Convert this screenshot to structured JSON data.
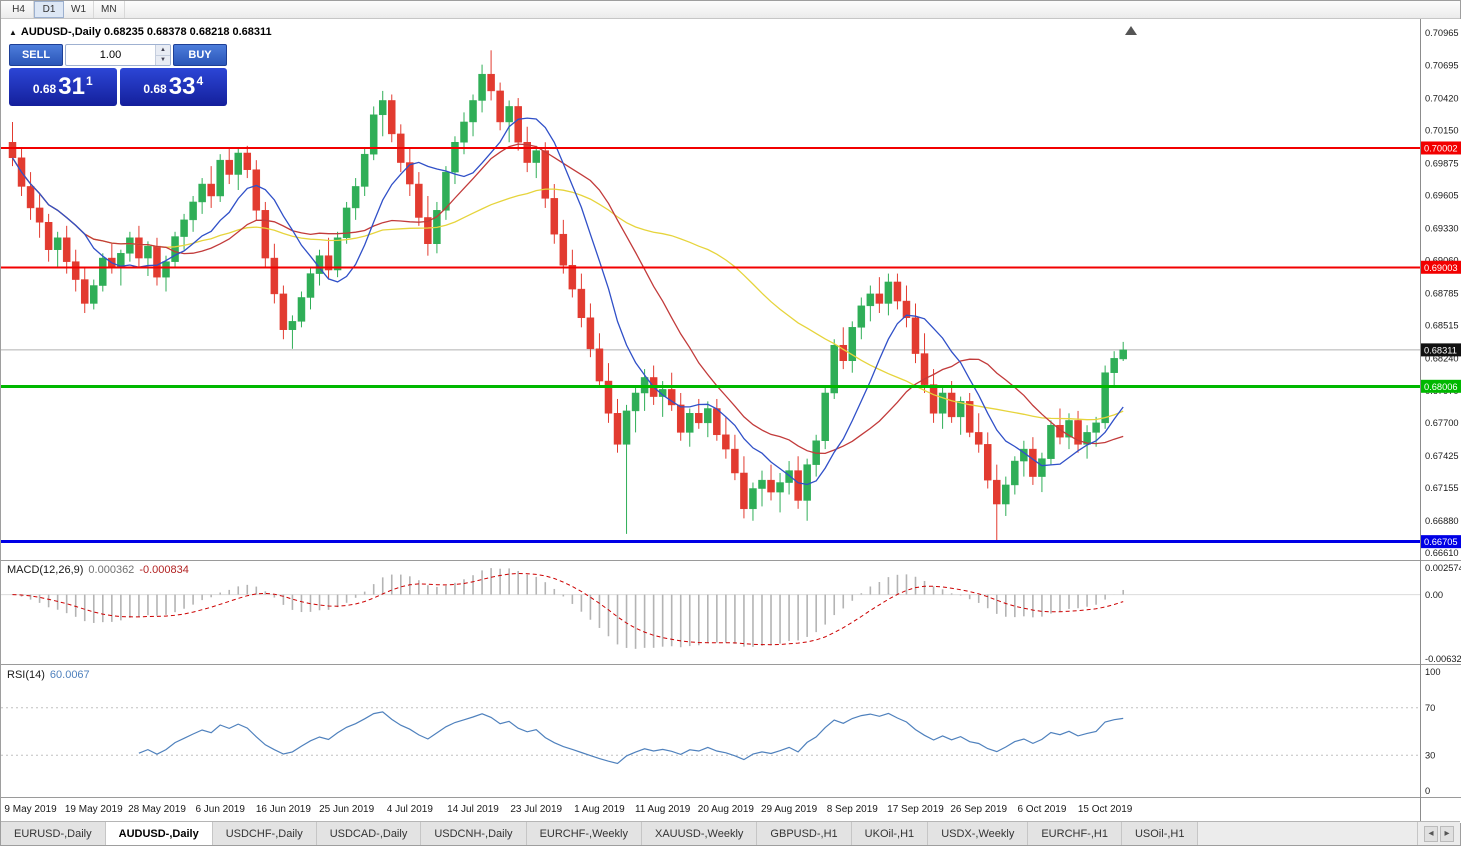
{
  "toolbar": {
    "timeframes": [
      "H4",
      "D1",
      "W1",
      "MN"
    ],
    "active": "D1"
  },
  "chart": {
    "title_line": "AUDUSD-,Daily  0.68235 0.68378 0.68218 0.68311",
    "symbol": "AUDUSD-",
    "period": "Daily"
  },
  "trade_panel": {
    "sell_label": "SELL",
    "buy_label": "BUY",
    "volume": "1.00",
    "sell_price": {
      "prefix": "0.68",
      "big": "31",
      "sup": "1"
    },
    "buy_price": {
      "prefix": "0.68",
      "big": "33",
      "sup": "4"
    }
  },
  "macd": {
    "name": "MACD(12,26,9)",
    "value": "0.000362",
    "signal": "-0.000834",
    "axis_max": "0.002574",
    "axis_zero": "0.00",
    "axis_min": "-0.006326",
    "max": 0.002574,
    "min": -0.006326,
    "fast": 12,
    "slow": 26,
    "signal_period": 9,
    "histogram_color": "#b4b4b4",
    "signal_color": "#cc0000"
  },
  "rsi": {
    "name": "RSI(14)",
    "value": "60.0067",
    "period": 14,
    "axis": [
      "100",
      "70",
      "30",
      "0"
    ],
    "levels": [
      70,
      30
    ],
    "line_color": "#4f81bd"
  },
  "tabs": {
    "items": [
      "EURUSD-,Daily",
      "AUDUSD-,Daily",
      "USDCHF-,Daily",
      "USDCAD-,Daily",
      "USDCNH-,Daily",
      "EURCHF-,Weekly",
      "XAUUSD-,Weekly",
      "GBPUSD-,H1",
      "UKOil-,H1",
      "USDX-,Weekly",
      "EURCHF-,H1",
      "USOil-,H1"
    ],
    "active_index": 1
  },
  "chart_data": {
    "type": "candlestick",
    "symbol": "AUDUSD-",
    "timeframe": "Daily",
    "ohlc": {
      "open": "0.68235",
      "high": "0.68378",
      "low": "0.68218",
      "close": "0.68311"
    },
    "up_color": "#2fae57",
    "down_color": "#e23b30",
    "bid_line": {
      "price": 0.68311,
      "color": "#b0b0b0"
    },
    "current_price": 0.68311,
    "y_axis": {
      "labels": [
        "0.70965",
        "0.70695",
        "0.70420",
        "0.70150",
        "0.69875",
        "0.69605",
        "0.69330",
        "0.69060",
        "0.68785",
        "0.68515",
        "0.68240",
        "0.67970",
        "0.67700",
        "0.67425",
        "0.67155",
        "0.66880",
        "0.66610"
      ],
      "min": 0.6661,
      "max": 0.70965
    },
    "hlines": [
      {
        "price": 0.70002,
        "color": "#f20000",
        "width": 2
      },
      {
        "price": 0.69003,
        "color": "#f20000",
        "width": 2
      },
      {
        "price": 0.68006,
        "color": "#00b800",
        "width": 3
      },
      {
        "price": 0.66705,
        "color": "#0000e6",
        "width": 3
      }
    ],
    "badges": [
      {
        "value": "0.70002",
        "price": 0.70002,
        "color": "#f20000"
      },
      {
        "value": "0.69003",
        "price": 0.69003,
        "color": "#f20000"
      },
      {
        "value": "0.68006",
        "price": 0.68006,
        "color": "#00b800"
      },
      {
        "value": "0.68311",
        "price": 0.68311,
        "color": "#111111"
      },
      {
        "value": "0.66705",
        "price": 0.66705,
        "color": "#0000e6"
      }
    ],
    "moving_averages": [
      {
        "period": 42,
        "color": "#e6d43c"
      },
      {
        "period": 18,
        "color": "#c23b3b"
      },
      {
        "period": 9,
        "color": "#3050c8"
      }
    ],
    "x_labels": [
      "9 May 2019",
      "19 May 2019",
      "28 May 2019",
      "6 Jun 2019",
      "16 Jun 2019",
      "25 Jun 2019",
      "4 Jul 2019",
      "14 Jul 2019",
      "23 Jul 2019",
      "1 Aug 2019",
      "11 Aug 2019",
      "20 Aug 2019",
      "29 Aug 2019",
      "8 Sep 2019",
      "17 Sep 2019",
      "26 Sep 2019",
      "6 Oct 2019",
      "15 Oct 2019"
    ],
    "x_label_first_index": 2,
    "x_label_step": 7,
    "candles": [
      [
        0.7005,
        0.7022,
        0.6985,
        0.6992
      ],
      [
        0.6992,
        0.7,
        0.696,
        0.6968
      ],
      [
        0.6968,
        0.698,
        0.694,
        0.695
      ],
      [
        0.695,
        0.6962,
        0.6925,
        0.6938
      ],
      [
        0.6938,
        0.6945,
        0.6905,
        0.6915
      ],
      [
        0.6915,
        0.693,
        0.69,
        0.6925
      ],
      [
        0.6925,
        0.6935,
        0.6895,
        0.6905
      ],
      [
        0.6905,
        0.6915,
        0.688,
        0.689
      ],
      [
        0.689,
        0.69,
        0.6862,
        0.687
      ],
      [
        0.687,
        0.689,
        0.6865,
        0.6885
      ],
      [
        0.6885,
        0.6912,
        0.688,
        0.6908
      ],
      [
        0.6908,
        0.692,
        0.6895,
        0.69
      ],
      [
        0.69,
        0.6915,
        0.6885,
        0.6912
      ],
      [
        0.6912,
        0.693,
        0.6905,
        0.6925
      ],
      [
        0.6925,
        0.6935,
        0.69,
        0.6908
      ],
      [
        0.6908,
        0.6922,
        0.6893,
        0.6918
      ],
      [
        0.6918,
        0.6925,
        0.6885,
        0.6892
      ],
      [
        0.6892,
        0.691,
        0.688,
        0.6905
      ],
      [
        0.6905,
        0.693,
        0.69,
        0.6926
      ],
      [
        0.6926,
        0.6945,
        0.6915,
        0.694
      ],
      [
        0.694,
        0.696,
        0.693,
        0.6955
      ],
      [
        0.6955,
        0.6975,
        0.6945,
        0.697
      ],
      [
        0.697,
        0.6985,
        0.695,
        0.696
      ],
      [
        0.696,
        0.6995,
        0.6955,
        0.699
      ],
      [
        0.699,
        0.7,
        0.697,
        0.6978
      ],
      [
        0.6978,
        0.7,
        0.6965,
        0.6996
      ],
      [
        0.6996,
        0.7002,
        0.6975,
        0.6982
      ],
      [
        0.6982,
        0.699,
        0.694,
        0.6948
      ],
      [
        0.6948,
        0.6955,
        0.69,
        0.6908
      ],
      [
        0.6908,
        0.692,
        0.687,
        0.6878
      ],
      [
        0.6878,
        0.6885,
        0.684,
        0.6848
      ],
      [
        0.6848,
        0.686,
        0.6832,
        0.6855
      ],
      [
        0.6855,
        0.688,
        0.685,
        0.6875
      ],
      [
        0.6875,
        0.69,
        0.6865,
        0.6895
      ],
      [
        0.6895,
        0.6915,
        0.6885,
        0.691
      ],
      [
        0.691,
        0.6925,
        0.689,
        0.6898
      ],
      [
        0.6898,
        0.693,
        0.6892,
        0.6925
      ],
      [
        0.6925,
        0.6955,
        0.692,
        0.695
      ],
      [
        0.695,
        0.6975,
        0.694,
        0.6968
      ],
      [
        0.6968,
        0.7,
        0.696,
        0.6995
      ],
      [
        0.6995,
        0.7035,
        0.699,
        0.7028
      ],
      [
        0.7028,
        0.7048,
        0.701,
        0.704
      ],
      [
        0.704,
        0.7045,
        0.7005,
        0.7012
      ],
      [
        0.7012,
        0.702,
        0.698,
        0.6988
      ],
      [
        0.6988,
        0.7,
        0.696,
        0.697
      ],
      [
        0.697,
        0.698,
        0.6935,
        0.6942
      ],
      [
        0.6942,
        0.696,
        0.691,
        0.692
      ],
      [
        0.692,
        0.6955,
        0.6912,
        0.6948
      ],
      [
        0.6948,
        0.6985,
        0.694,
        0.698
      ],
      [
        0.698,
        0.701,
        0.697,
        0.7005
      ],
      [
        0.7005,
        0.703,
        0.6995,
        0.7022
      ],
      [
        0.7022,
        0.7045,
        0.701,
        0.704
      ],
      [
        0.704,
        0.707,
        0.703,
        0.7062
      ],
      [
        0.7062,
        0.7082,
        0.704,
        0.7048
      ],
      [
        0.7048,
        0.7055,
        0.7015,
        0.7022
      ],
      [
        0.7022,
        0.704,
        0.7005,
        0.7035
      ],
      [
        0.7035,
        0.7042,
        0.6998,
        0.7005
      ],
      [
        0.7005,
        0.7018,
        0.698,
        0.6988
      ],
      [
        0.6988,
        0.7002,
        0.6975,
        0.6998
      ],
      [
        0.6998,
        0.7005,
        0.695,
        0.6958
      ],
      [
        0.6958,
        0.697,
        0.692,
        0.6928
      ],
      [
        0.6928,
        0.694,
        0.6895,
        0.6902
      ],
      [
        0.6902,
        0.6915,
        0.6875,
        0.6882
      ],
      [
        0.6882,
        0.6895,
        0.685,
        0.6858
      ],
      [
        0.6858,
        0.687,
        0.6825,
        0.6832
      ],
      [
        0.6832,
        0.6845,
        0.68,
        0.6805
      ],
      [
        0.6805,
        0.682,
        0.677,
        0.6778
      ],
      [
        0.6778,
        0.679,
        0.6745,
        0.6752
      ],
      [
        0.6752,
        0.6785,
        0.6677,
        0.678
      ],
      [
        0.678,
        0.68,
        0.6762,
        0.6795
      ],
      [
        0.6795,
        0.6815,
        0.678,
        0.6808
      ],
      [
        0.6808,
        0.6818,
        0.6785,
        0.6792
      ],
      [
        0.6792,
        0.6805,
        0.6775,
        0.6798
      ],
      [
        0.6798,
        0.6812,
        0.678,
        0.6785
      ],
      [
        0.6785,
        0.6795,
        0.6755,
        0.6762
      ],
      [
        0.6762,
        0.6782,
        0.675,
        0.6778
      ],
      [
        0.6778,
        0.679,
        0.6765,
        0.677
      ],
      [
        0.677,
        0.6788,
        0.6758,
        0.6782
      ],
      [
        0.6782,
        0.679,
        0.6755,
        0.676
      ],
      [
        0.676,
        0.6775,
        0.674,
        0.6748
      ],
      [
        0.6748,
        0.676,
        0.6722,
        0.6728
      ],
      [
        0.6728,
        0.6742,
        0.669,
        0.6698
      ],
      [
        0.6698,
        0.672,
        0.6688,
        0.6715
      ],
      [
        0.6715,
        0.673,
        0.67,
        0.6722
      ],
      [
        0.6722,
        0.6735,
        0.6705,
        0.6712
      ],
      [
        0.6712,
        0.6728,
        0.6695,
        0.672
      ],
      [
        0.672,
        0.6738,
        0.671,
        0.673
      ],
      [
        0.673,
        0.6742,
        0.6698,
        0.6705
      ],
      [
        0.6705,
        0.674,
        0.6688,
        0.6735
      ],
      [
        0.6735,
        0.676,
        0.6725,
        0.6755
      ],
      [
        0.6755,
        0.68,
        0.6748,
        0.6795
      ],
      [
        0.6795,
        0.684,
        0.679,
        0.6835
      ],
      [
        0.6835,
        0.685,
        0.6815,
        0.6822
      ],
      [
        0.6822,
        0.6855,
        0.6812,
        0.685
      ],
      [
        0.685,
        0.6875,
        0.684,
        0.6868
      ],
      [
        0.6868,
        0.6885,
        0.6855,
        0.6878
      ],
      [
        0.6878,
        0.6892,
        0.6862,
        0.687
      ],
      [
        0.687,
        0.6895,
        0.686,
        0.6888
      ],
      [
        0.6888,
        0.6895,
        0.6865,
        0.6872
      ],
      [
        0.6872,
        0.6885,
        0.685,
        0.6858
      ],
      [
        0.6858,
        0.687,
        0.682,
        0.6828
      ],
      [
        0.6828,
        0.6845,
        0.6795,
        0.6802
      ],
      [
        0.6802,
        0.6815,
        0.677,
        0.6778
      ],
      [
        0.6778,
        0.68,
        0.6765,
        0.6795
      ],
      [
        0.6795,
        0.6805,
        0.677,
        0.6775
      ],
      [
        0.6775,
        0.6792,
        0.676,
        0.6788
      ],
      [
        0.6788,
        0.6795,
        0.6758,
        0.6762
      ],
      [
        0.6762,
        0.6778,
        0.6745,
        0.6752
      ],
      [
        0.6752,
        0.6762,
        0.6715,
        0.6722
      ],
      [
        0.6722,
        0.6735,
        0.667,
        0.6702
      ],
      [
        0.6702,
        0.6725,
        0.6692,
        0.6718
      ],
      [
        0.6718,
        0.6742,
        0.671,
        0.6738
      ],
      [
        0.6738,
        0.6755,
        0.6725,
        0.6748
      ],
      [
        0.6748,
        0.6758,
        0.6718,
        0.6725
      ],
      [
        0.6725,
        0.6745,
        0.6712,
        0.674
      ],
      [
        0.674,
        0.6772,
        0.6735,
        0.6768
      ],
      [
        0.6768,
        0.6782,
        0.6752,
        0.6758
      ],
      [
        0.6758,
        0.6778,
        0.6748,
        0.6772
      ],
      [
        0.6772,
        0.678,
        0.6745,
        0.6752
      ],
      [
        0.6752,
        0.6768,
        0.674,
        0.6762
      ],
      [
        0.6762,
        0.6775,
        0.675,
        0.677
      ],
      [
        0.677,
        0.6818,
        0.6765,
        0.6812
      ],
      [
        0.6812,
        0.683,
        0.68,
        0.6824
      ],
      [
        0.68235,
        0.68378,
        0.68218,
        0.68311
      ]
    ]
  }
}
